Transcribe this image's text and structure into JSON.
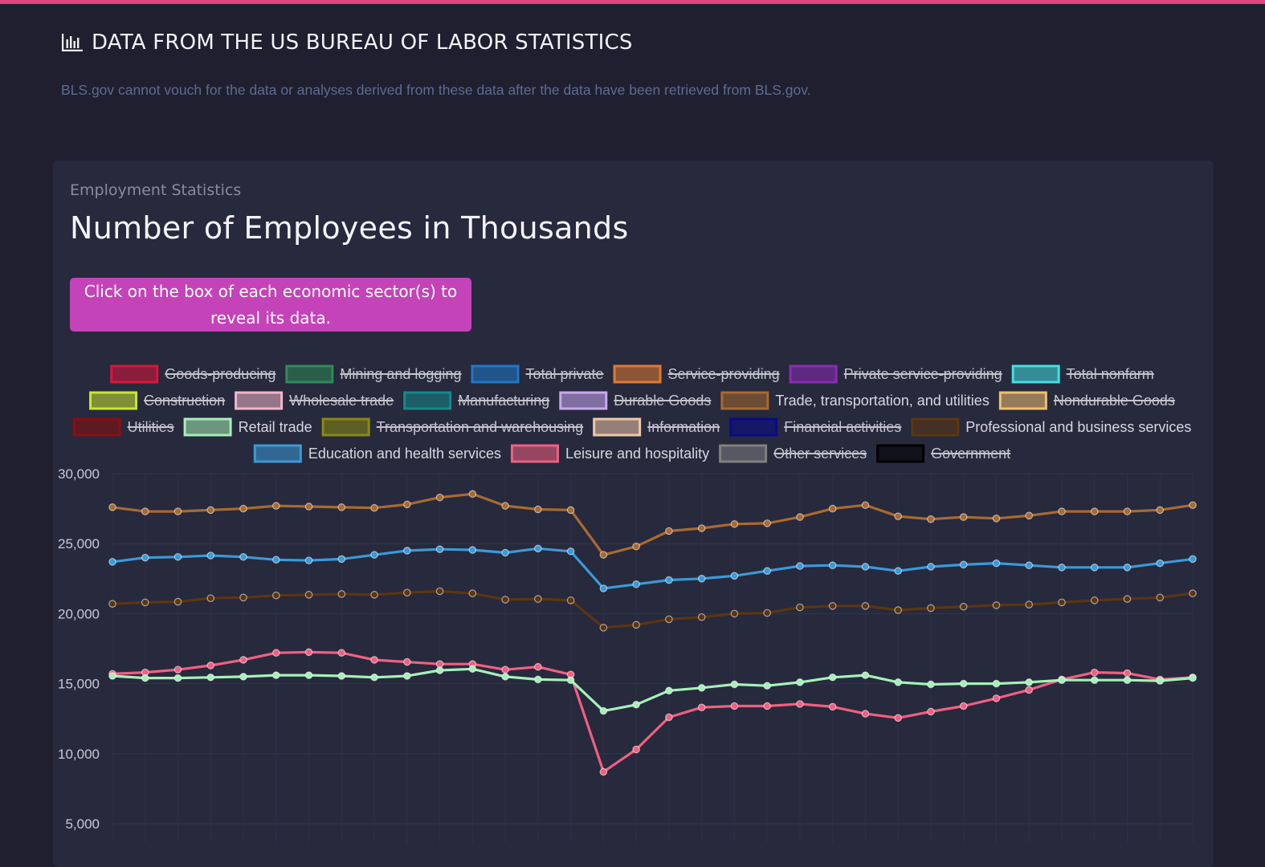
{
  "header": {
    "title": "DATA FROM THE US BUREAU OF LABOR STATISTICS",
    "icon": "bar-chart-icon",
    "disclaimer": "BLS.gov cannot vouch for the data or analyses derived from these data after the data have been retrieved from BLS.gov."
  },
  "card": {
    "subtitle": "Employment Statistics",
    "title": "Number of Employees in Thousands",
    "hint": "Click on the box of each economic sector(s) to reveal its data."
  },
  "legend": [
    {
      "label": "Goods-producing",
      "color": "#dc143c",
      "hidden": true,
      "row": 0
    },
    {
      "label": "Mining and logging",
      "color": "#2e8b57",
      "hidden": true,
      "row": 0
    },
    {
      "label": "Total private",
      "color": "#1e78c8",
      "hidden": true,
      "row": 0
    },
    {
      "label": "Service-providing",
      "color": "#e07a30",
      "hidden": true,
      "row": 0
    },
    {
      "label": "Private service-providing",
      "color": "#8a2bb8",
      "hidden": true,
      "row": 0
    },
    {
      "label": "Total nonfarm",
      "color": "#40e0e0",
      "hidden": true,
      "row": 0
    },
    {
      "label": "Construction",
      "color": "#c8e632",
      "hidden": true,
      "row": 1
    },
    {
      "label": "Wholesale trade",
      "color": "#f2b6c8",
      "hidden": true,
      "row": 1
    },
    {
      "label": "Manufacturing",
      "color": "#138a8a",
      "hidden": true,
      "row": 1
    },
    {
      "label": "Durable Goods",
      "color": "#c8a8f0",
      "hidden": true,
      "row": 1
    },
    {
      "label": "Trade, transportation, and utilities",
      "color": "#a86a30",
      "hidden": false,
      "row": 1
    },
    {
      "label": "Nondurable Goods",
      "color": "#f0c070",
      "hidden": true,
      "row": 1
    },
    {
      "label": "Utilities",
      "color": "#8b0f0f",
      "hidden": true,
      "row": 2
    },
    {
      "label": "Retail trade",
      "color": "#a6f0b8",
      "hidden": false,
      "row": 2
    },
    {
      "label": "Transportation and warehousing",
      "color": "#8a8a10",
      "hidden": true,
      "row": 2
    },
    {
      "label": "Information",
      "color": "#f0c8a8",
      "hidden": true,
      "row": 2
    },
    {
      "label": "Financial activities",
      "color": "#0a0a8a",
      "hidden": true,
      "row": 2
    },
    {
      "label": "Professional and business services",
      "color": "#5c3610",
      "hidden": false,
      "row": 2
    },
    {
      "label": "Education and health services",
      "color": "#3a9ad8",
      "hidden": false,
      "row": 3
    },
    {
      "label": "Leisure and hospitality",
      "color": "#f06080",
      "hidden": false,
      "row": 3
    },
    {
      "label": "Other services",
      "color": "#808080",
      "hidden": true,
      "row": 3
    },
    {
      "label": "Government",
      "color": "#000000",
      "hidden": true,
      "row": 3
    }
  ],
  "chart_data": {
    "type": "line",
    "yticks": [
      "30,000",
      "25,000",
      "20,000",
      "15,000",
      "10,000",
      "5,000"
    ],
    "ylim": [
      5000,
      30000
    ],
    "grid": true,
    "legend_position": "top",
    "series": [
      {
        "name": "Trade, transportation, and utilities",
        "color": "#a86a30",
        "values": [
          27600,
          27300,
          27300,
          27400,
          27500,
          27700,
          27650,
          27600,
          27550,
          27800,
          28300,
          28550,
          27700,
          27450,
          27400,
          24200,
          24800,
          25900,
          26100,
          26400,
          26450,
          26900,
          27500,
          27750,
          26950,
          26750,
          26900,
          26800,
          27000,
          27300,
          27300,
          27300,
          27400,
          27750
        ]
      },
      {
        "name": "Education and health services",
        "color": "#3a9ad8",
        "values": [
          23700,
          24000,
          24050,
          24150,
          24050,
          23850,
          23800,
          23900,
          24200,
          24500,
          24600,
          24550,
          24350,
          24650,
          24450,
          21800,
          22100,
          22400,
          22500,
          22700,
          23050,
          23400,
          23450,
          23350,
          23050,
          23350,
          23500,
          23600,
          23450,
          23300,
          23300,
          23300,
          23600,
          23900
        ]
      },
      {
        "name": "Professional and business services",
        "color": "#5c3610",
        "values": [
          20700,
          20800,
          20850,
          21100,
          21150,
          21300,
          21350,
          21400,
          21350,
          21500,
          21600,
          21450,
          21000,
          21050,
          20950,
          19000,
          19200,
          19600,
          19750,
          20000,
          20050,
          20450,
          20550,
          20550,
          20250,
          20400,
          20500,
          20600,
          20650,
          20800,
          20950,
          21050,
          21150,
          21450
        ]
      },
      {
        "name": "Leisure and hospitality",
        "color": "#f06080",
        "values": [
          15700,
          15800,
          16000,
          16300,
          16700,
          17200,
          17250,
          17200,
          16700,
          16550,
          16400,
          16400,
          16000,
          16200,
          15650,
          8700,
          10300,
          12600,
          13300,
          13400,
          13400,
          13550,
          13350,
          12850,
          12550,
          13000,
          13400,
          13950,
          14550,
          15300,
          15800,
          15750,
          15300,
          15450
        ]
      },
      {
        "name": "Retail trade",
        "color": "#a6f0b8",
        "values": [
          15550,
          15400,
          15400,
          15450,
          15500,
          15600,
          15600,
          15550,
          15450,
          15550,
          15950,
          16050,
          15500,
          15300,
          15250,
          13050,
          13500,
          14500,
          14700,
          14950,
          14850,
          15100,
          15450,
          15600,
          15100,
          14950,
          15000,
          15000,
          15100,
          15250,
          15250,
          15250,
          15200,
          15400
        ]
      }
    ]
  }
}
